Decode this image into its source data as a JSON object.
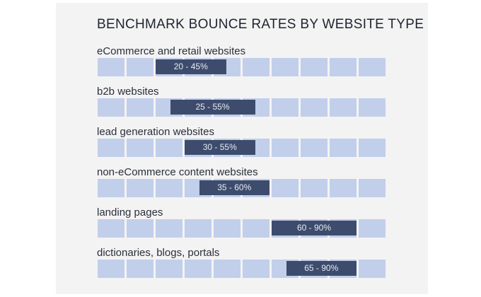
{
  "chart_data": {
    "type": "bar",
    "title": "BENCHMARK BOUNCE RATES BY WEBSITE TYPE",
    "xlim": [
      0,
      100
    ],
    "grid_cells": 10,
    "colors": {
      "cell": "#c2cfea",
      "bar": "#3d4c6d",
      "bar_text": "#e7ebf3"
    },
    "series": [
      {
        "category": "eCommerce and retail websites",
        "low": 20,
        "high": 45,
        "label": "20 - 45%"
      },
      {
        "category": "b2b websites",
        "low": 25,
        "high": 55,
        "label": "25 - 55%"
      },
      {
        "category": "lead generation websites",
        "low": 30,
        "high": 55,
        "label": "30 - 55%"
      },
      {
        "category": "non-eCommerce content websites",
        "low": 35,
        "high": 60,
        "label": "35 - 60%"
      },
      {
        "category": "landing pages",
        "low": 60,
        "high": 90,
        "label": "60 - 90%"
      },
      {
        "category": "dictionaries, blogs, portals",
        "low": 65,
        "high": 90,
        "label": "65 - 90%"
      }
    ]
  }
}
